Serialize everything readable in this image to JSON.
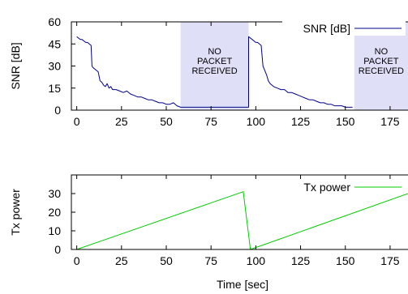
{
  "colors": {
    "snr_line": "#00008b",
    "tx_line": "#00cc00",
    "gap_fill": "#dfe0f8",
    "axis": "#000000",
    "background": "#ffffff"
  },
  "chart_data": [
    {
      "type": "line",
      "ylabel": "SNR [dB]",
      "xlim": [
        -3,
        185
      ],
      "ylim": [
        0,
        60
      ],
      "xticks": [
        "0",
        "25",
        "50",
        "75",
        "100",
        "125",
        "150",
        "175"
      ],
      "yticks": [
        "0",
        "15",
        "30",
        "45",
        "60"
      ],
      "legend": "top-right",
      "series": [
        {
          "name": "SNR [dB]",
          "x": [
            0,
            1,
            2,
            3,
            4,
            5,
            6,
            7,
            8,
            8.5,
            9,
            10,
            11,
            12,
            13,
            14,
            15,
            16,
            17,
            18,
            19,
            20,
            22,
            24,
            26,
            28,
            30,
            32,
            34,
            36,
            38,
            40,
            42,
            44,
            46,
            48,
            50,
            52,
            54,
            56,
            58,
            96,
            96,
            97,
            98,
            99,
            100,
            101,
            102,
            103,
            104,
            105,
            106,
            107,
            108,
            110,
            112,
            114,
            116,
            118,
            120,
            122,
            124,
            126,
            128,
            130,
            132,
            134,
            136,
            138,
            140,
            142,
            144,
            146,
            148,
            150,
            152,
            154
          ],
          "values": [
            50,
            49,
            48,
            48,
            47,
            46,
            46,
            45,
            44,
            30,
            29,
            28,
            27,
            26,
            20,
            19,
            17,
            16,
            18,
            15,
            16,
            14,
            14,
            13,
            12,
            13,
            11,
            10,
            9,
            9,
            8,
            7,
            7,
            6,
            5,
            5,
            4,
            4,
            5,
            3,
            2,
            2,
            50,
            49,
            48,
            47,
            46,
            46,
            45,
            44,
            30,
            27,
            24,
            20,
            18,
            16,
            15,
            14,
            14,
            12,
            12,
            11,
            10,
            9,
            8,
            7,
            7,
            6,
            5,
            5,
            4,
            4,
            3,
            3,
            3,
            2,
            2,
            2
          ]
        }
      ],
      "annotations": [
        {
          "text_lines": [
            "NO",
            "PACKET",
            "RECEIVED"
          ],
          "x_range": [
            58,
            96
          ]
        },
        {
          "text_lines": [
            "NO",
            "PACKET",
            "RECEIVED"
          ],
          "x_range": [
            155,
            185
          ]
        }
      ]
    },
    {
      "type": "line",
      "xlabel": "Time [sec]",
      "ylabel": "Tx power",
      "xlim": [
        -3,
        185
      ],
      "ylim": [
        0,
        40
      ],
      "xticks": [
        "0",
        "25",
        "50",
        "75",
        "100",
        "125",
        "150",
        "175"
      ],
      "yticks": [
        "0",
        "10",
        "20",
        "30"
      ],
      "legend": "top-right",
      "series": [
        {
          "name": "Tx power",
          "x": [
            0,
            93,
            97,
            185
          ],
          "values": [
            0,
            31,
            0,
            30
          ]
        }
      ]
    }
  ]
}
